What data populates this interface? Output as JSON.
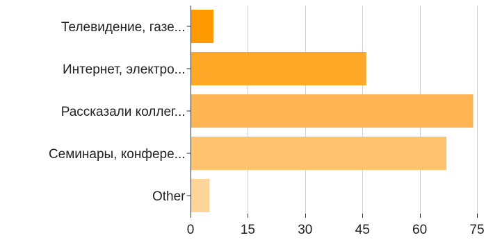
{
  "chart_data": {
    "type": "bar",
    "orientation": "horizontal",
    "title": "",
    "xlabel": "",
    "ylabel": "",
    "categories": [
      "Телевидение, газе...",
      "Интернет, электро...",
      "Рассказали коллег...",
      "Семинары, конфере...",
      "Other"
    ],
    "values": [
      6,
      46,
      74,
      67,
      5
    ],
    "colors": [
      "#ff9900",
      "#ffa726",
      "#ffb454",
      "#ffc36f",
      "#ffd59a"
    ],
    "xlim": [
      0,
      75
    ],
    "xticks": [
      0,
      15,
      30,
      45,
      60,
      75
    ],
    "tick_labels": [
      "0",
      "15",
      "30",
      "45",
      "60",
      "75"
    ],
    "grid": true,
    "legend": "none"
  }
}
